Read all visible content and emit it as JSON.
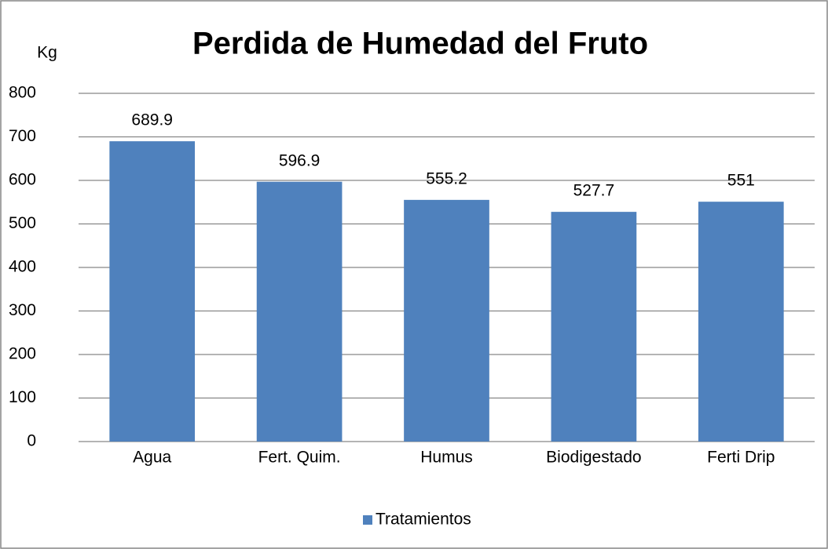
{
  "chart_data": {
    "type": "bar",
    "title": "Perdida de Humedad del Fruto",
    "y_label": "Kg",
    "categories": [
      "Agua",
      "Fert. Quim.",
      "Humus",
      "Biodigestado",
      "Ferti Drip"
    ],
    "series": [
      {
        "name": "Tratamientos",
        "color": "#4f81bd",
        "values": [
          689.9,
          596.9,
          555.2,
          527.7,
          551
        ]
      }
    ],
    "ylim": [
      0,
      800
    ],
    "yticks": [
      0,
      100,
      200,
      300,
      400,
      500,
      600,
      700,
      800
    ],
    "grid": true,
    "legend": "bottom"
  }
}
